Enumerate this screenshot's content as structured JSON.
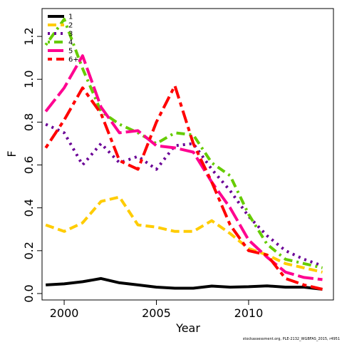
{
  "chart_data": {
    "type": "line",
    "xlabel": "Year",
    "ylabel": "F",
    "xlim": [
      1998.8,
      2014.6
    ],
    "ylim": [
      -0.03,
      1.33
    ],
    "x_ticks": [
      2000,
      2005,
      2010
    ],
    "x_tick_labels": [
      "2000",
      "2005",
      "2010"
    ],
    "y_ticks": [
      0.0,
      0.2,
      0.4,
      0.6,
      0.8,
      1.0,
      1.2
    ],
    "y_tick_labels": [
      "0.0",
      "0.2",
      "0.4",
      "0.6",
      "0.8",
      "1.0",
      "1.2"
    ],
    "grid": false,
    "legend_position": "top-left",
    "x": [
      1999,
      2000,
      2001,
      2002,
      2003,
      2004,
      2005,
      2006,
      2007,
      2008,
      2009,
      2010,
      2011,
      2012,
      2013,
      2014
    ],
    "series": [
      {
        "name": "1",
        "color": "#000000",
        "dash": "solid",
        "values": [
          0.04,
          0.045,
          0.055,
          0.07,
          0.05,
          0.04,
          0.03,
          0.025,
          0.025,
          0.035,
          0.03,
          0.032,
          0.036,
          0.03,
          0.03,
          0.02
        ]
      },
      {
        "name": "2",
        "color": "#ffcc00",
        "dash": "dashed",
        "values": [
          0.32,
          0.29,
          0.33,
          0.43,
          0.45,
          0.32,
          0.31,
          0.29,
          0.29,
          0.34,
          0.28,
          0.21,
          0.18,
          0.14,
          0.12,
          0.1
        ]
      },
      {
        "name": "3",
        "color": "#6a0096",
        "dash": "dotted",
        "values": [
          0.79,
          0.75,
          0.6,
          0.7,
          0.61,
          0.64,
          0.58,
          0.69,
          0.7,
          0.58,
          0.48,
          0.36,
          0.27,
          0.2,
          0.16,
          0.13
        ]
      },
      {
        "name": "4",
        "color": "#66cc00",
        "dash": "dotdash",
        "values": [
          1.16,
          1.28,
          1.05,
          0.85,
          0.79,
          0.75,
          0.7,
          0.75,
          0.74,
          0.61,
          0.55,
          0.37,
          0.23,
          0.16,
          0.14,
          0.12
        ]
      },
      {
        "name": "5",
        "color": "#ff0090",
        "dash": "longdash",
        "values": [
          0.85,
          0.96,
          1.11,
          0.87,
          0.75,
          0.76,
          0.69,
          0.68,
          0.66,
          0.52,
          0.4,
          0.25,
          0.17,
          0.1,
          0.075,
          0.065
        ]
      },
      {
        "name": "6+",
        "color": "#ff0000",
        "dash": "twodash",
        "values": [
          0.68,
          0.81,
          0.96,
          0.84,
          0.62,
          0.58,
          0.8,
          0.97,
          0.7,
          0.52,
          0.32,
          0.2,
          0.18,
          0.07,
          0.04,
          0.02
        ]
      }
    ]
  },
  "footnote": "stockassessment.org, PLE-2132_WGBFAS_2015, r4951"
}
